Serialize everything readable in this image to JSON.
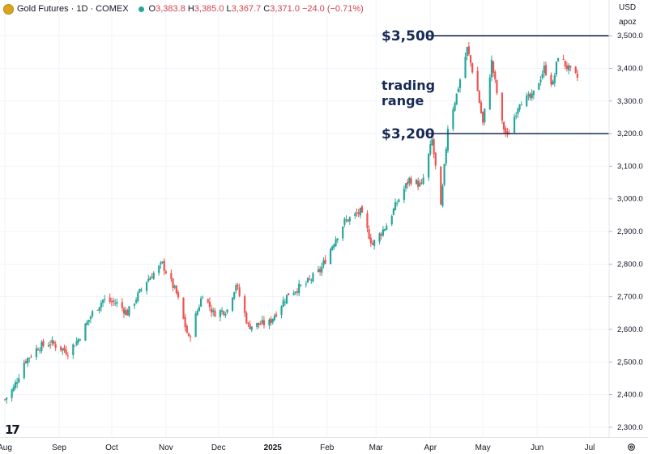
{
  "legend": {
    "title": "Gold Futures · 1D · COMEX",
    "open_label": "O",
    "open_value": "3,383.8",
    "high_label": "H",
    "high_value": "3,385.0",
    "low_label": "L",
    "low_value": "3,367.7",
    "close_label": "C",
    "close_value": "3,371.0",
    "change": "−24.0 (−0.71%)"
  },
  "currency": "USD",
  "scale_label": "apoz",
  "watermark": "17",
  "annotations": {
    "upper_level": "$3,500",
    "lower_level": "$3,200",
    "range_label_1": "trading",
    "range_label_2": "range"
  },
  "colors": {
    "up": "#26a69a",
    "down": "#ef5350",
    "annotation": "#172a55",
    "accent": "#d9a520"
  },
  "chart_data": {
    "type": "candlestick",
    "y_ticks": [
      "2,300.0",
      "2,400.0",
      "2,500.0",
      "2,600.0",
      "2,700.0",
      "2,800.0",
      "2,900.0",
      "3,000.0",
      "3,100.0",
      "3,200.0",
      "3,300.0",
      "3,400.0",
      "3,500.0"
    ],
    "x_ticks": [
      "Aug",
      "Sep",
      "Oct",
      "Nov",
      "Dec",
      "2025",
      "Feb",
      "Mar",
      "Apr",
      "May",
      "Jun",
      "Jul"
    ],
    "ylim": [
      2270,
      3560
    ],
    "x_range": [
      "2024-08-01",
      "2025-07-01"
    ],
    "reference_lines": [
      3500,
      3200
    ],
    "anchors": [
      [
        "2024-08-01",
        2385
      ],
      [
        "2024-08-06",
        2420
      ],
      [
        "2024-08-12",
        2500
      ],
      [
        "2024-08-20",
        2545
      ],
      [
        "2024-08-27",
        2560
      ],
      [
        "2024-09-06",
        2530
      ],
      [
        "2024-09-12",
        2570
      ],
      [
        "2024-09-20",
        2650
      ],
      [
        "2024-09-26",
        2690
      ],
      [
        "2024-10-04",
        2680
      ],
      [
        "2024-10-10",
        2650
      ],
      [
        "2024-10-21",
        2750
      ],
      [
        "2024-10-30",
        2800
      ],
      [
        "2024-11-07",
        2710
      ],
      [
        "2024-11-14",
        2570
      ],
      [
        "2024-11-22",
        2710
      ],
      [
        "2024-11-28",
        2650
      ],
      [
        "2024-12-06",
        2660
      ],
      [
        "2024-12-11",
        2740
      ],
      [
        "2024-12-18",
        2610
      ],
      [
        "2024-12-30",
        2620
      ],
      [
        "2025-01-10",
        2710
      ],
      [
        "2025-01-20",
        2740
      ],
      [
        "2025-01-28",
        2780
      ],
      [
        "2025-02-06",
        2880
      ],
      [
        "2025-02-11",
        2930
      ],
      [
        "2025-02-20",
        2960
      ],
      [
        "2025-02-27",
        2860
      ],
      [
        "2025-03-07",
        2920
      ],
      [
        "2025-03-14",
        3000
      ],
      [
        "2025-03-20",
        3060
      ],
      [
        "2025-03-27",
        3040
      ],
      [
        "2025-04-02",
        3180
      ],
      [
        "2025-04-07",
        2970
      ],
      [
        "2025-04-11",
        3220
      ],
      [
        "2025-04-16",
        3320
      ],
      [
        "2025-04-22",
        3460
      ],
      [
        "2025-04-28",
        3330
      ],
      [
        "2025-05-01",
        3230
      ],
      [
        "2025-05-06",
        3420
      ],
      [
        "2025-05-12",
        3230
      ],
      [
        "2025-05-15",
        3190
      ],
      [
        "2025-05-22",
        3300
      ],
      [
        "2025-05-29",
        3310
      ],
      [
        "2025-06-05",
        3400
      ],
      [
        "2025-06-10",
        3350
      ],
      [
        "2025-06-13",
        3440
      ],
      [
        "2025-06-20",
        3390
      ],
      [
        "2025-06-24",
        3371
      ]
    ]
  }
}
